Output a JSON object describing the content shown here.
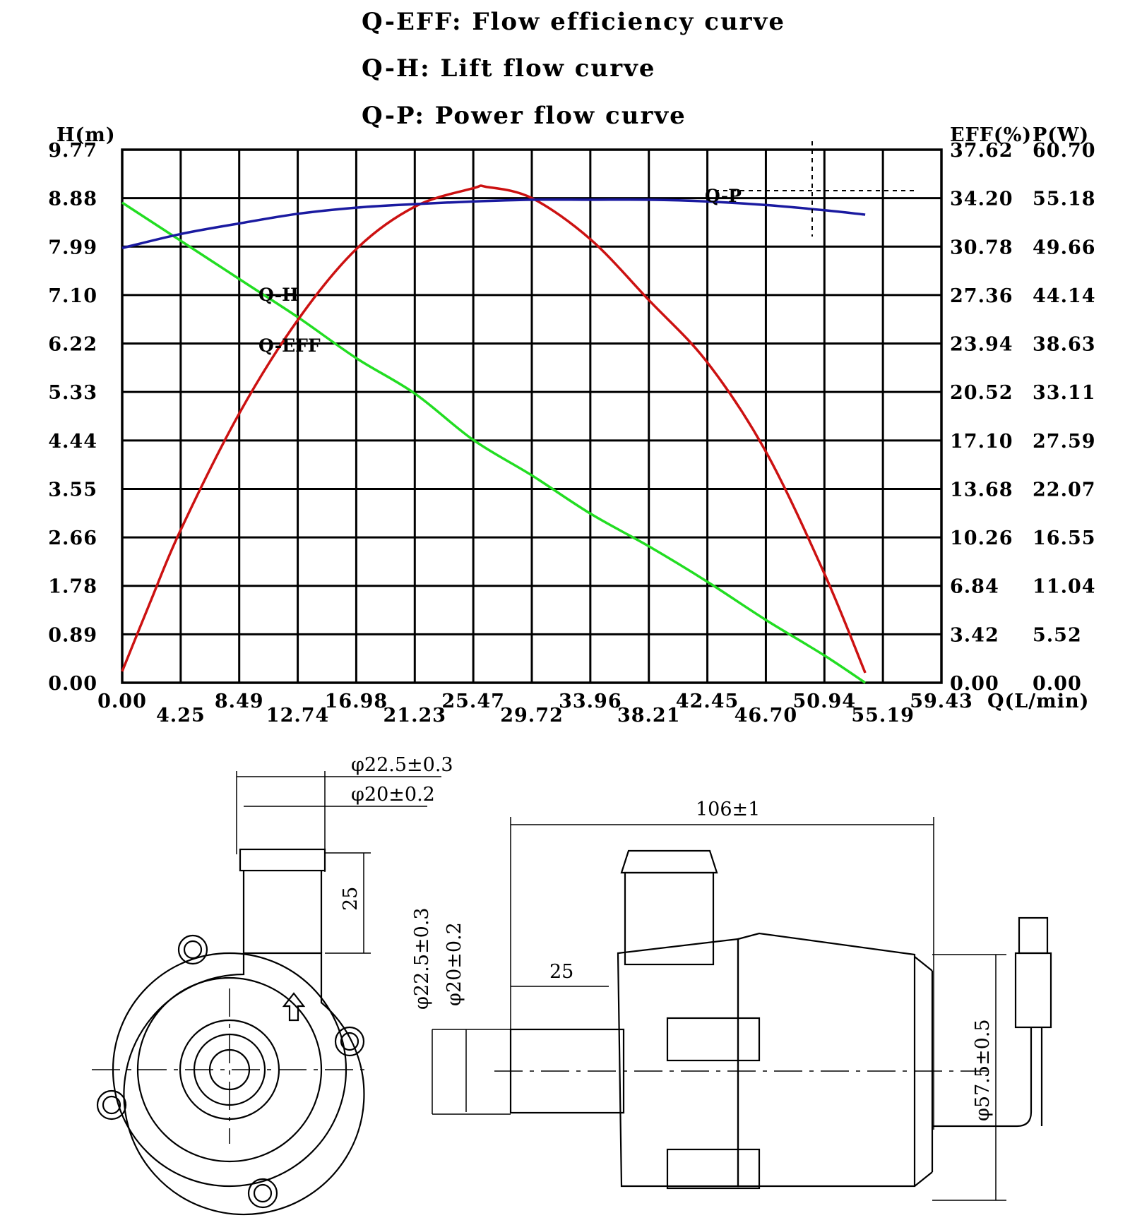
{
  "legend": [
    {
      "code": "Q-EFF",
      "text": "Q-EFF: Flow efficiency curve"
    },
    {
      "code": "Q-H",
      "text": "Q-H: Lift flow curve"
    },
    {
      "code": "Q-P",
      "text": "Q-P: Power flow curve"
    }
  ],
  "chart_data": {
    "type": "line",
    "xlabel": "Q(L/min)",
    "ylabel_left": "H(m)",
    "ylabel_right_1": "EFF(%)",
    "ylabel_right_2": "P(W)",
    "xlim": [
      0,
      59.43
    ],
    "ylim_left": [
      0,
      9.77
    ],
    "ylim_eff": [
      0,
      37.62
    ],
    "ylim_power": [
      0,
      60.7
    ],
    "grid": true,
    "x_ticks": [
      "0.00",
      "4.25",
      "8.49",
      "12.74",
      "16.98",
      "21.23",
      "25.47",
      "29.72",
      "33.96",
      "38.21",
      "42.45",
      "46.70",
      "50.94",
      "55.19",
      "59.43"
    ],
    "y_ticks_left": [
      "0.00",
      "0.89",
      "1.78",
      "2.66",
      "3.55",
      "4.44",
      "5.33",
      "6.22",
      "7.10",
      "7.99",
      "8.88",
      "9.77"
    ],
    "y_ticks_eff": [
      "0.00",
      "3.42",
      "6.84",
      "10.26",
      "13.68",
      "17.10",
      "20.52",
      "23.94",
      "27.36",
      "30.78",
      "34.20",
      "37.62"
    ],
    "y_ticks_power": [
      "0.00",
      "5.52",
      "11.04",
      "16.55",
      "22.07",
      "27.59",
      "33.11",
      "38.63",
      "44.14",
      "49.66",
      "55.18",
      "60.70"
    ],
    "series": [
      {
        "name": "Q-H",
        "axis": "H(m)",
        "color": "#22dd22",
        "x": [
          0,
          4.25,
          8.49,
          12.74,
          16.98,
          21.23,
          25.47,
          29.72,
          33.96,
          38.21,
          42.45,
          46.7,
          50.94,
          53.9
        ],
        "y": [
          8.8,
          8.1,
          7.4,
          6.7,
          5.95,
          5.3,
          4.45,
          3.8,
          3.1,
          2.5,
          1.85,
          1.15,
          0.5,
          0.0
        ]
      },
      {
        "name": "Q-EFF",
        "axis": "EFF(%)",
        "color": "#cc1111",
        "x": [
          0,
          2,
          4.25,
          8.49,
          12.74,
          16.98,
          21.23,
          25.47,
          26.4,
          29.72,
          33.96,
          38.21,
          42.45,
          46.7,
          50.94,
          53.9
        ],
        "y": [
          0.8,
          5.6,
          10.8,
          19.0,
          25.6,
          30.6,
          33.6,
          34.9,
          35.0,
          34.2,
          31.3,
          27.0,
          22.6,
          16.3,
          7.7,
          0.7
        ]
      },
      {
        "name": "Q-P",
        "axis": "P(W)",
        "color": "#1a1aa0",
        "x": [
          0,
          4.25,
          8.49,
          12.74,
          16.98,
          21.23,
          25.47,
          29.72,
          33.96,
          38.21,
          42.45,
          46.7,
          50.94,
          53.9
        ],
        "y": [
          49.5,
          51.1,
          52.3,
          53.4,
          54.1,
          54.5,
          54.8,
          55.0,
          55.0,
          55.0,
          54.8,
          54.4,
          53.8,
          53.3
        ]
      }
    ]
  },
  "drawing": {
    "front_view": {
      "dim_outer": "φ22.5±0.3",
      "dim_inner": "φ20±0.2",
      "dim_length": "25"
    },
    "side_view": {
      "dim_total": "106±1",
      "dim_length": "25",
      "dim_outer": "φ22.5±0.3",
      "dim_inner": "φ20±0.2",
      "dim_body": "φ57.5±0.5"
    }
  }
}
